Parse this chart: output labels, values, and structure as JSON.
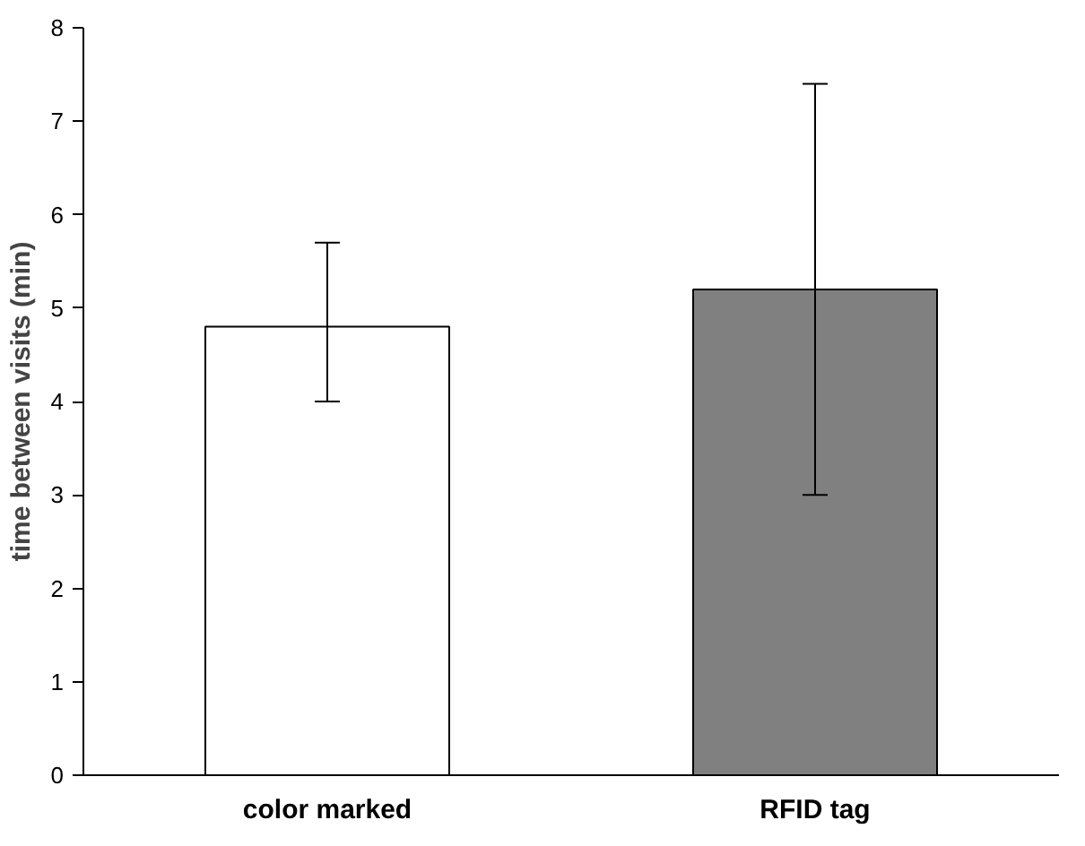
{
  "chart_data": {
    "type": "bar",
    "ylabel": "time between visits (min)",
    "categories": [
      "color marked",
      "RFID tag"
    ],
    "values": [
      4.8,
      5.2
    ],
    "colors": [
      "#ffffff",
      "#808080"
    ],
    "errors": [
      [
        4.0,
        5.7
      ],
      [
        3.0,
        7.4
      ]
    ],
    "ylim": [
      0,
      8
    ],
    "yticks": [
      0,
      1,
      2,
      3,
      4,
      5,
      6,
      7,
      8
    ],
    "grid": false
  }
}
